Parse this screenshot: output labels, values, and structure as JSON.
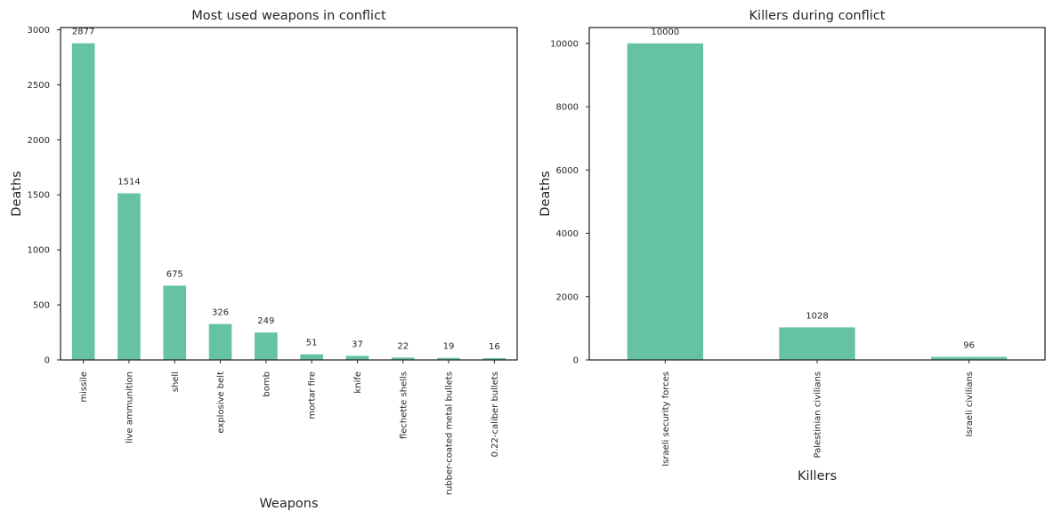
{
  "chart_data": [
    {
      "type": "bar",
      "title": "Most used weapons in conflict",
      "xlabel": "Weapons",
      "ylabel": "Deaths",
      "categories": [
        "missile",
        "live ammunition",
        "shell",
        "explosive belt",
        "bomb",
        "mortar fire",
        "knife",
        "flechette shells",
        "rubber-coated metal bullets",
        "0.22-caliber bullets"
      ],
      "values": [
        2877,
        1514,
        675,
        326,
        249,
        51,
        37,
        22,
        19,
        16
      ],
      "value_labels": [
        "2877",
        "1514",
        "675",
        "326",
        "249",
        "51",
        "37",
        "22",
        "19",
        "16"
      ],
      "ylim": [
        0,
        3020
      ],
      "yticks": [
        0,
        500,
        1000,
        1500,
        2000,
        2500,
        3000
      ],
      "ytick_labels": [
        "0",
        "500",
        "1000",
        "1500",
        "2000",
        "2500",
        "3000"
      ],
      "grid": false,
      "bar_color": "#66c2a5"
    },
    {
      "type": "bar",
      "title": "Killers during conflict",
      "xlabel": "Killers",
      "ylabel": "Deaths",
      "categories": [
        "Israeli security forces",
        "Palestinian civilians",
        "Israeli civilians"
      ],
      "values": [
        10000,
        1028,
        96
      ],
      "value_labels": [
        "10000",
        "1028",
        "96"
      ],
      "ylim": [
        0,
        10500
      ],
      "yticks": [
        0,
        2000,
        4000,
        6000,
        8000,
        10000
      ],
      "ytick_labels": [
        "0",
        "2000",
        "4000",
        "6000",
        "8000",
        "10000"
      ],
      "grid": false,
      "bar_color": "#66c2a5"
    }
  ]
}
